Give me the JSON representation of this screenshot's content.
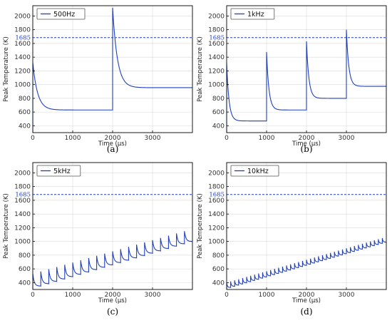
{
  "chart_data": [
    {
      "type": "line",
      "caption": "(a)",
      "xlabel": "Time (µs)",
      "ylabel": "Peak Temperature (K)",
      "xlim": [
        0,
        4000
      ],
      "ylim": [
        300,
        2150
      ],
      "xticks": [
        0,
        1000,
        2000,
        3000
      ],
      "yticks": [
        400,
        600,
        800,
        1000,
        1200,
        1400,
        1600,
        1800,
        2000
      ],
      "grid": true,
      "legend_position": "top-left",
      "reference_line": {
        "y": 1685,
        "label": "1685",
        "style": "dashed"
      },
      "series": [
        {
          "name": "500Hz",
          "color": "#1f3fbf",
          "pulse_period": 2000,
          "pulses": [
            {
              "t": 0,
              "peak": 1320,
              "floor": 630
            },
            {
              "t": 2000,
              "peak": 2120,
              "floor": 955
            }
          ]
        }
      ]
    },
    {
      "type": "line",
      "caption": "(b)",
      "xlabel": "Time (µs)",
      "ylabel": "Peak Temperature (K)",
      "xlim": [
        0,
        4000
      ],
      "ylim": [
        300,
        2150
      ],
      "xticks": [
        0,
        1000,
        2000,
        3000
      ],
      "yticks": [
        400,
        600,
        800,
        1000,
        1200,
        1400,
        1600,
        1800,
        2000
      ],
      "grid": true,
      "legend_position": "top-left",
      "reference_line": {
        "y": 1685,
        "label": "1685",
        "style": "dashed"
      },
      "series": [
        {
          "name": "1kHz",
          "color": "#1f3fbf",
          "pulse_period": 1000,
          "pulses": [
            {
              "t": 0,
              "peak": 1310,
              "floor": 470
            },
            {
              "t": 1000,
              "peak": 1475,
              "floor": 630
            },
            {
              "t": 2000,
              "peak": 1630,
              "floor": 800
            },
            {
              "t": 3000,
              "peak": 1800,
              "floor": 975
            }
          ]
        }
      ]
    },
    {
      "type": "line",
      "caption": "(c)",
      "xlabel": "Time (µs)",
      "ylabel": "Peak Temperature (K)",
      "xlim": [
        0,
        4000
      ],
      "ylim": [
        300,
        2150
      ],
      "xticks": [
        0,
        1000,
        2000,
        3000
      ],
      "yticks": [
        400,
        600,
        800,
        1000,
        1200,
        1400,
        1600,
        1800,
        2000
      ],
      "grid": true,
      "legend_position": "top-left",
      "reference_line": {
        "y": 1685,
        "label": "1685",
        "style": "dashed"
      },
      "series": [
        {
          "name": "5kHz",
          "color": "#1f3fbf",
          "pulse_period": 200,
          "pulse_count": 20,
          "peak_start": 530,
          "peak_end": 1150,
          "trough_start": 350,
          "trough_end": 1000
        }
      ]
    },
    {
      "type": "line",
      "caption": "(d)",
      "xlabel": "Time (µs)",
      "ylabel": "Peak Temperature (K)",
      "xlim": [
        0,
        4000
      ],
      "ylim": [
        300,
        2150
      ],
      "xticks": [
        0,
        1000,
        2000,
        3000
      ],
      "yticks": [
        400,
        600,
        800,
        1000,
        1200,
        1400,
        1600,
        1800,
        2000
      ],
      "grid": true,
      "legend_position": "top-left",
      "reference_line": {
        "y": 1685,
        "label": "1685",
        "style": "dashed"
      },
      "series": [
        {
          "name": "10kHz",
          "color": "#1f3fbf",
          "pulse_period": 100,
          "pulse_count": 40,
          "peak_start": 400,
          "peak_end": 1050,
          "trough_start": 330,
          "trough_end": 990
        }
      ]
    }
  ]
}
